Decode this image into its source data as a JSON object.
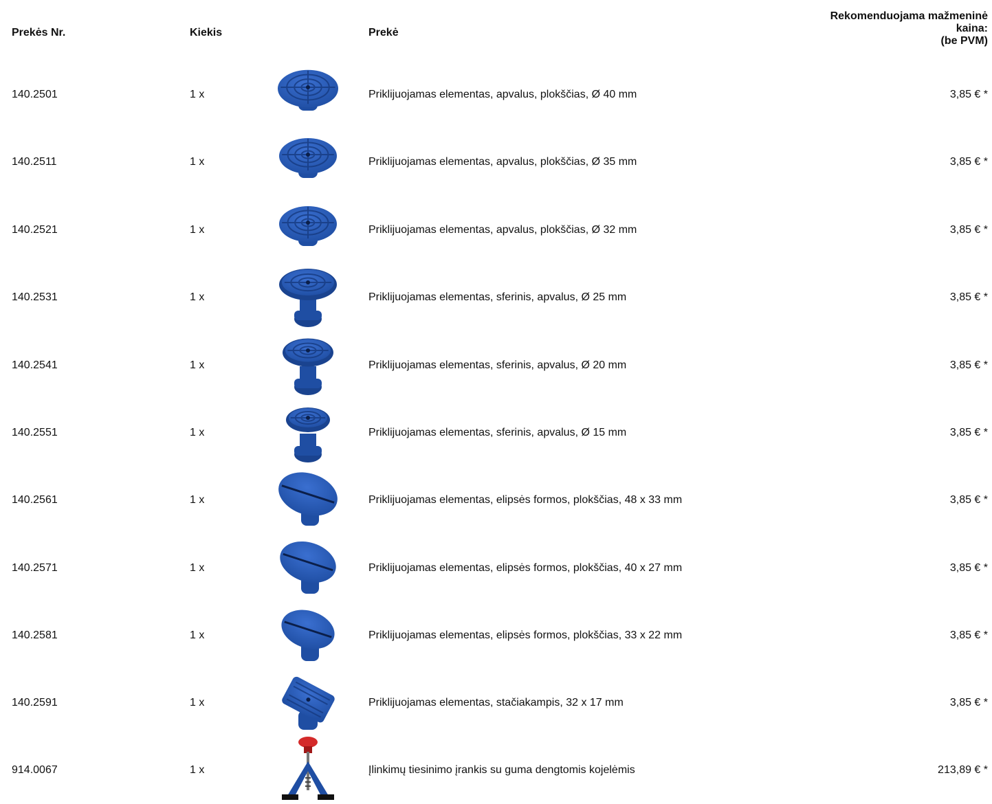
{
  "header": {
    "col_nr": "Prekės Nr.",
    "col_qty": "Kiekis",
    "col_item": "Prekė",
    "col_price_line1": "Rekomenduojama mažmeninė",
    "col_price_line2": "kaina:",
    "col_price_line3": "(be PVM)"
  },
  "colors": {
    "product_blue": "#1f4ea3",
    "knob_red": "#d42a2a"
  },
  "rows": [
    {
      "nr": "140.2501",
      "qty": "1 x",
      "desc": "Priklijuojamas elementas, apvalus, plokščias, Ø 40 mm",
      "price": "3,85 € *",
      "icon": "round-flat-glue-tab-icon"
    },
    {
      "nr": "140.2511",
      "qty": "1 x",
      "desc": "Priklijuojamas elementas, apvalus, plokščias, Ø 35 mm",
      "price": "3,85 € *",
      "icon": "round-flat-glue-tab-icon"
    },
    {
      "nr": "140.2521",
      "qty": "1 x",
      "desc": "Priklijuojamas elementas, apvalus, plokščias, Ø 32 mm",
      "price": "3,85 € *",
      "icon": "round-flat-glue-tab-icon"
    },
    {
      "nr": "140.2531",
      "qty": "1 x",
      "desc": "Priklijuojamas elementas, sferinis, apvalus, Ø 25 mm",
      "price": "3,85 € *",
      "icon": "round-spherical-glue-tab-icon"
    },
    {
      "nr": "140.2541",
      "qty": "1 x",
      "desc": "Priklijuojamas elementas, sferinis, apvalus, Ø 20 mm",
      "price": "3,85 € *",
      "icon": "round-spherical-glue-tab-icon"
    },
    {
      "nr": "140.2551",
      "qty": "1 x",
      "desc": "Priklijuojamas elementas, sferinis, apvalus, Ø 15 mm",
      "price": "3,85 € *",
      "icon": "round-spherical-glue-tab-icon"
    },
    {
      "nr": "140.2561",
      "qty": "1 x",
      "desc": "Priklijuojamas elementas, elipsės formos, plokščias, 48 x 33 mm",
      "price": "3,85 € *",
      "icon": "oval-glue-tab-icon"
    },
    {
      "nr": "140.2571",
      "qty": "1 x",
      "desc": "Priklijuojamas elementas, elipsės formos, plokščias, 40 x 27 mm",
      "price": "3,85 € *",
      "icon": "oval-glue-tab-icon"
    },
    {
      "nr": "140.2581",
      "qty": "1 x",
      "desc": "Priklijuojamas elementas, elipsės formos, plokščias, 33 x 22 mm",
      "price": "3,85 € *",
      "icon": "oval-glue-tab-icon"
    },
    {
      "nr": "140.2591",
      "qty": "1 x",
      "desc": "Priklijuojamas elementas, stačiakampis, 32 x 17 mm",
      "price": "3,85 € *",
      "icon": "rectangular-glue-tab-icon"
    },
    {
      "nr": "914.0067",
      "qty": "1 x",
      "desc": "Įlinkimų tiesinimo įrankis su guma dengtomis kojelėmis",
      "price": "213,89 € *",
      "icon": "dent-lifter-tool-icon"
    }
  ]
}
